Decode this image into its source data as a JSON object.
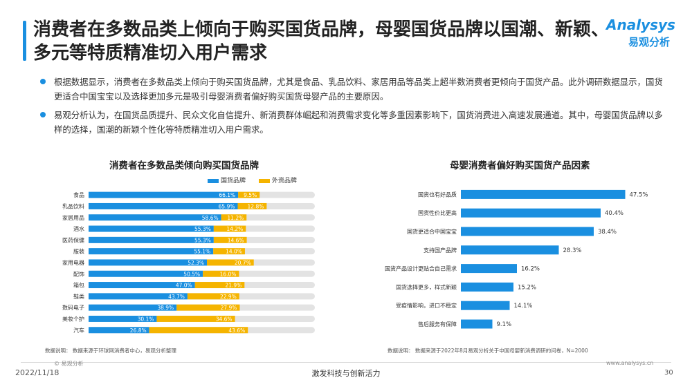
{
  "slide": {
    "title": "消费者在多数品类上倾向于购买国货品牌，母婴国货品牌以国潮、新颖、多元等特质精准切入用户需求",
    "logo_en": "Analysys",
    "logo_cn": "易观分析",
    "bullets": [
      "根据数据显示，消费者在多数品类上倾向于购买国货品牌，尤其是食品、乳品饮料、家居用品等品类上超半数消费者更倾向于国货产品。此外调研数据显示，国货更适合中国宝宝以及选择更加多元是吸引母婴消费者偏好购买国货母婴产品的主要原因。",
      "易观分析认为，在国货品质提升、民众文化自信提升、新消费群体崛起和消费需求变化等多重因素影响下，国货消费进入高速发展通道。其中，母婴国货品牌以多样的选择，国潮的新颖个性化等特质精准切入用户需求。"
    ],
    "accent_color": "#1a8fe0"
  },
  "footer": {
    "copyright": "© 易观分析",
    "date": "2022/11/18",
    "slogan": "激发科技与创新活力",
    "url": "www.analysys.cn",
    "page": "30"
  },
  "chart_data": [
    {
      "type": "bar",
      "orientation": "horizontal",
      "stacked": true,
      "title": "消费者在多数品类倾向购买国货品牌",
      "categories": [
        "食品",
        "乳品饮料",
        "家居用品",
        "酒水",
        "医药保健",
        "服装",
        "家用电器",
        "配饰",
        "箱包",
        "鞋类",
        "数码电子",
        "美妆个护",
        "汽车"
      ],
      "series": [
        {
          "name": "国货品牌",
          "color": "#1a8fe0",
          "values": [
            66.1,
            65.9,
            58.6,
            55.3,
            55.3,
            55.1,
            52.3,
            50.5,
            47.0,
            43.7,
            38.9,
            30.1,
            26.8
          ],
          "labels": [
            "66.1%",
            "65.9%",
            "58.6%",
            "55.3%",
            "55.3%",
            "55.1%",
            "52.3%",
            "50.5%",
            "47.0%",
            "43.7%",
            "38.9%",
            "30.1%",
            "26.8%"
          ]
        },
        {
          "name": "外资品牌",
          "color": "#f5b400",
          "values": [
            9.5,
            12.8,
            11.2,
            14.2,
            14.6,
            14.0,
            20.7,
            16.0,
            21.9,
            22.9,
            27.9,
            34.6,
            43.6
          ],
          "labels": [
            "9.5%",
            "12.8%",
            "11.2%",
            "14.2%",
            "14.6%",
            "14.0%",
            "20.7%",
            "16.0%",
            "21.9%",
            "22.9%",
            "27.9%",
            "34.6%",
            "43.6%"
          ]
        }
      ],
      "xlim": [
        0,
        100
      ],
      "legend": "top-right",
      "note": "数据说明：   数据来源于环球网消费者中心，易观分析整理"
    },
    {
      "type": "bar",
      "orientation": "horizontal",
      "title": "母婴消费者偏好购买国货产品因素",
      "categories": [
        "国货也有好品质",
        "国货性价比更高",
        "国货更适合中国宝宝",
        "支持国产品牌",
        "国货产品设计更贴合自己需求",
        "国货选择更多，样式新颖",
        "受疫情影响，进口不稳定",
        "售后服务有保障"
      ],
      "series": [
        {
          "name": "",
          "color": "#1a8fe0",
          "values": [
            47.5,
            40.4,
            38.4,
            28.3,
            16.2,
            15.2,
            14.1,
            9.1
          ],
          "labels": [
            "47.5%",
            "40.4%",
            "38.4%",
            "28.3%",
            "16.2%",
            "15.2%",
            "14.1%",
            "9.1%"
          ]
        }
      ],
      "xlim": [
        0,
        50
      ],
      "note": "数据说明：   数据来源于2022年8月易观分析关于中国母婴新消费调研的问卷，N=2000"
    }
  ]
}
